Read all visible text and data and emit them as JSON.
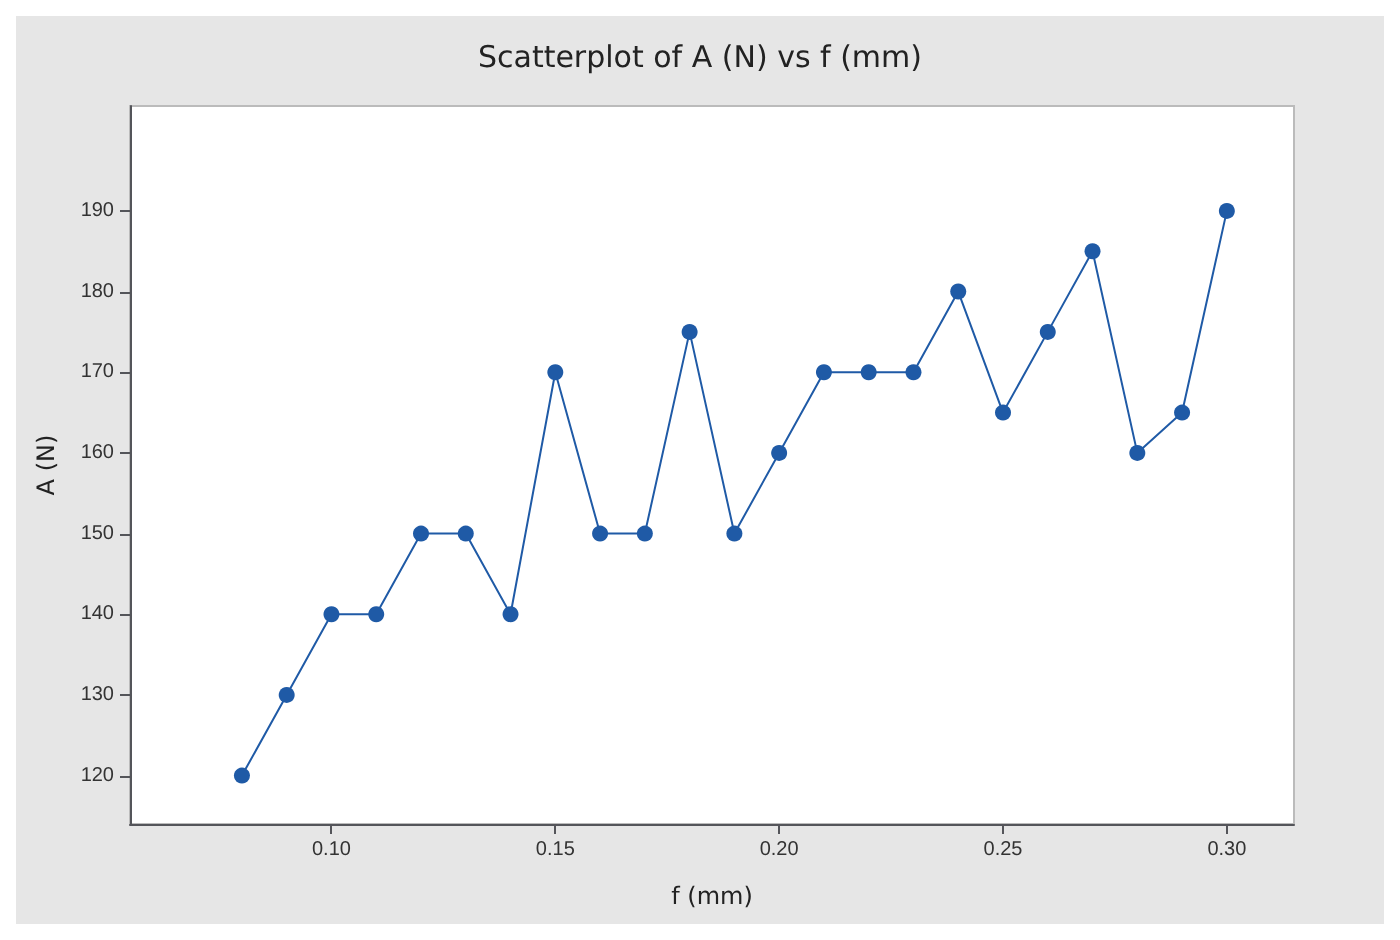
{
  "chart_data": {
    "type": "line",
    "title": "Scatterplot of A (N) vs f (mm)",
    "xlabel": "f (mm)",
    "ylabel": "A (N)",
    "x": [
      0.08,
      0.09,
      0.1,
      0.11,
      0.12,
      0.13,
      0.14,
      0.15,
      0.16,
      0.17,
      0.18,
      0.19,
      0.2,
      0.21,
      0.22,
      0.23,
      0.24,
      0.25,
      0.26,
      0.27,
      0.28,
      0.29,
      0.3
    ],
    "series": [
      {
        "color": "#1f5aa6",
        "values": [
          120,
          130,
          140,
          140,
          150,
          150,
          140,
          170,
          150,
          150,
          175,
          150,
          160,
          170,
          170,
          170,
          180,
          165,
          175,
          185,
          160,
          165,
          190
        ]
      }
    ],
    "xlim": [
      0.055,
      0.315
    ],
    "xticks": [
      {
        "value": 0.1,
        "label": "0.10"
      },
      {
        "value": 0.15,
        "label": "0.15"
      },
      {
        "value": 0.2,
        "label": "0.20"
      },
      {
        "value": 0.25,
        "label": "0.25"
      },
      {
        "value": 0.3,
        "label": "0.30"
      }
    ],
    "ylim": [
      114,
      203
    ],
    "yticks": [
      120,
      130,
      140,
      150,
      160,
      170,
      180,
      190
    ],
    "marker": "circle",
    "line_style": "solid"
  }
}
